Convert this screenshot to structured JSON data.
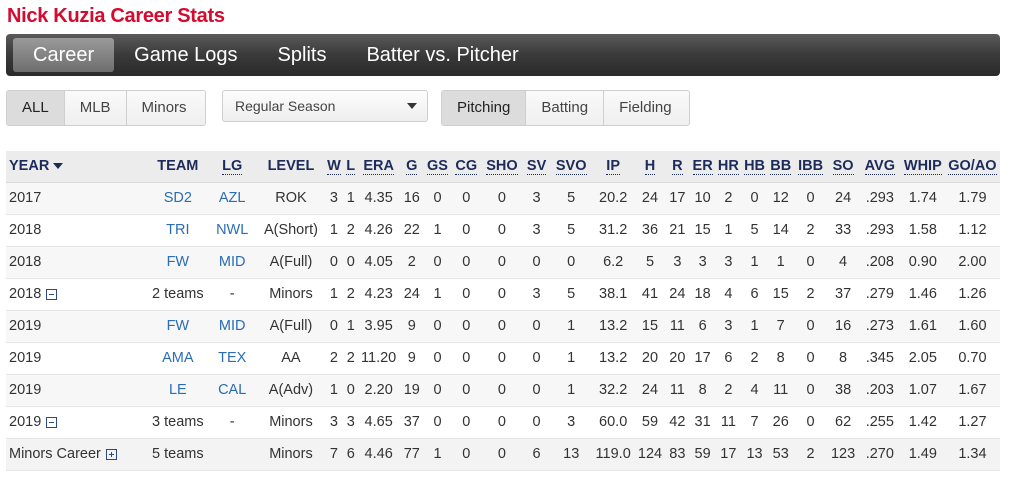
{
  "title": "Nick Kuzia Career Stats",
  "nav": {
    "tabs": [
      "Career",
      "Game Logs",
      "Splits",
      "Batter vs. Pitcher"
    ],
    "active": "Career"
  },
  "level_filter": {
    "options": [
      "ALL",
      "MLB",
      "Minors"
    ],
    "active": "ALL"
  },
  "season_select": {
    "value": "Regular Season"
  },
  "stat_type": {
    "options": [
      "Pitching",
      "Batting",
      "Fielding"
    ],
    "active": "Pitching"
  },
  "table": {
    "columns": [
      "YEAR",
      "TEAM",
      "LG",
      "LEVEL",
      "W",
      "L",
      "ERA",
      "G",
      "GS",
      "CG",
      "SHO",
      "SV",
      "SVO",
      "IP",
      "H",
      "R",
      "ER",
      "HR",
      "HB",
      "BB",
      "IBB",
      "SO",
      "AVG",
      "WHIP",
      "GO/AO"
    ],
    "rows": [
      {
        "year": "2017",
        "team": "SD2",
        "lg": "AZL",
        "level": "ROK",
        "w": "3",
        "l": "1",
        "era": "4.35",
        "g": "16",
        "gs": "0",
        "cg": "0",
        "sho": "0",
        "sv": "3",
        "svo": "5",
        "ip": "20.2",
        "h": "24",
        "r": "17",
        "er": "10",
        "hr": "2",
        "hb": "0",
        "bb": "12",
        "ibb": "0",
        "so": "24",
        "avg": ".293",
        "whip": "1.74",
        "goao": "1.79"
      },
      {
        "year": "2018",
        "team": "TRI",
        "lg": "NWL",
        "level": "A(Short)",
        "w": "1",
        "l": "2",
        "era": "4.26",
        "g": "22",
        "gs": "1",
        "cg": "0",
        "sho": "0",
        "sv": "3",
        "svo": "5",
        "ip": "31.2",
        "h": "36",
        "r": "21",
        "er": "15",
        "hr": "1",
        "hb": "5",
        "bb": "14",
        "ibb": "2",
        "so": "33",
        "avg": ".293",
        "whip": "1.58",
        "goao": "1.12"
      },
      {
        "year": "2018",
        "team": "FW",
        "lg": "MID",
        "level": "A(Full)",
        "w": "0",
        "l": "0",
        "era": "4.05",
        "g": "2",
        "gs": "0",
        "cg": "0",
        "sho": "0",
        "sv": "0",
        "svo": "0",
        "ip": "6.2",
        "h": "5",
        "r": "3",
        "er": "3",
        "hr": "3",
        "hb": "1",
        "bb": "1",
        "ibb": "0",
        "so": "4",
        "avg": ".208",
        "whip": "0.90",
        "goao": "2.00"
      },
      {
        "year": "2018",
        "team": "2 teams",
        "lg": "-",
        "level": "Minors",
        "w": "1",
        "l": "2",
        "era": "4.23",
        "g": "24",
        "gs": "1",
        "cg": "0",
        "sho": "0",
        "sv": "3",
        "svo": "5",
        "ip": "38.1",
        "h": "41",
        "r": "24",
        "er": "18",
        "hr": "4",
        "hb": "6",
        "bb": "15",
        "ibb": "2",
        "so": "37",
        "avg": ".279",
        "whip": "1.46",
        "goao": "1.26",
        "total": true,
        "toggle": "minus"
      },
      {
        "year": "2019",
        "team": "FW",
        "lg": "MID",
        "level": "A(Full)",
        "w": "0",
        "l": "1",
        "era": "3.95",
        "g": "9",
        "gs": "0",
        "cg": "0",
        "sho": "0",
        "sv": "0",
        "svo": "1",
        "ip": "13.2",
        "h": "15",
        "r": "11",
        "er": "6",
        "hr": "3",
        "hb": "1",
        "bb": "7",
        "ibb": "0",
        "so": "16",
        "avg": ".273",
        "whip": "1.61",
        "goao": "1.60"
      },
      {
        "year": "2019",
        "team": "AMA",
        "lg": "TEX",
        "level": "AA",
        "w": "2",
        "l": "2",
        "era": "11.20",
        "g": "9",
        "gs": "0",
        "cg": "0",
        "sho": "0",
        "sv": "0",
        "svo": "1",
        "ip": "13.2",
        "h": "20",
        "r": "20",
        "er": "17",
        "hr": "6",
        "hb": "2",
        "bb": "8",
        "ibb": "0",
        "so": "8",
        "avg": ".345",
        "whip": "2.05",
        "goao": "0.70"
      },
      {
        "year": "2019",
        "team": "LE",
        "lg": "CAL",
        "level": "A(Adv)",
        "w": "1",
        "l": "0",
        "era": "2.20",
        "g": "19",
        "gs": "0",
        "cg": "0",
        "sho": "0",
        "sv": "0",
        "svo": "1",
        "ip": "32.2",
        "h": "24",
        "r": "11",
        "er": "8",
        "hr": "2",
        "hb": "4",
        "bb": "11",
        "ibb": "0",
        "so": "38",
        "avg": ".203",
        "whip": "1.07",
        "goao": "1.67"
      },
      {
        "year": "2019",
        "team": "3 teams",
        "lg": "-",
        "level": "Minors",
        "w": "3",
        "l": "3",
        "era": "4.65",
        "g": "37",
        "gs": "0",
        "cg": "0",
        "sho": "0",
        "sv": "0",
        "svo": "3",
        "ip": "60.0",
        "h": "59",
        "r": "42",
        "er": "31",
        "hr": "11",
        "hb": "7",
        "bb": "26",
        "ibb": "0",
        "so": "62",
        "avg": ".255",
        "whip": "1.42",
        "goao": "1.27",
        "total": true,
        "toggle": "minus"
      },
      {
        "year": "Minors Career",
        "team": "5 teams",
        "lg": "",
        "level": "Minors",
        "w": "7",
        "l": "6",
        "era": "4.46",
        "g": "77",
        "gs": "1",
        "cg": "0",
        "sho": "0",
        "sv": "6",
        "svo": "13",
        "ip": "119.0",
        "h": "124",
        "r": "83",
        "er": "59",
        "hr": "17",
        "hb": "13",
        "bb": "53",
        "ibb": "2",
        "so": "123",
        "avg": ".270",
        "whip": "1.49",
        "goao": "1.34",
        "career": true,
        "toggle": "plus"
      }
    ]
  }
}
